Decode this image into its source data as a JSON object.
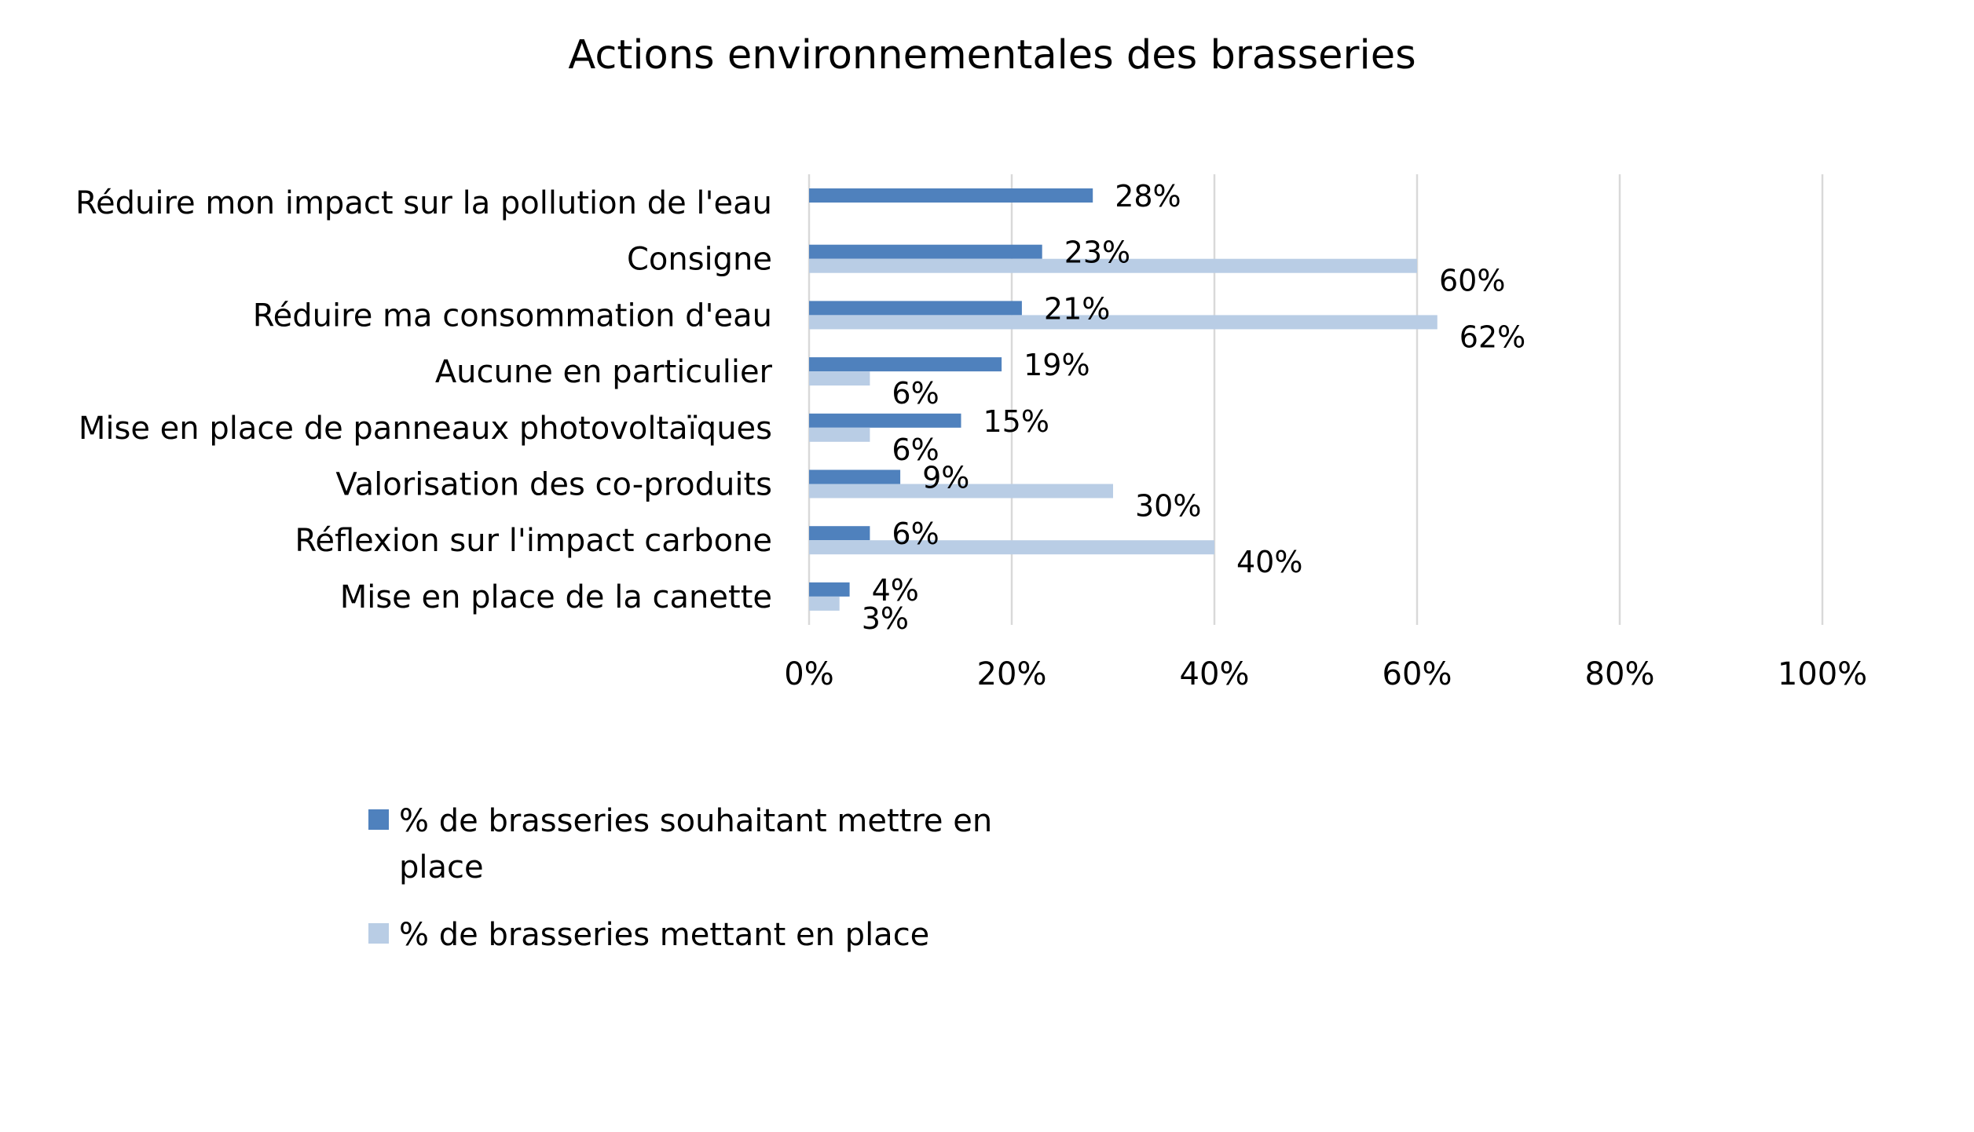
{
  "chart_data": {
    "type": "bar",
    "orientation": "horizontal",
    "title": "Actions environnementales des brasseries",
    "categories": [
      "Réduire mon impact sur la pollution de l'eau",
      "Consigne",
      "Réduire ma  consommation d'eau",
      "Aucune en particulier",
      "Mise en place de panneaux photovoltaïques",
      "Valorisation des co-produits",
      "Réflexion sur l'impact carbone",
      "Mise en place de la canette"
    ],
    "series": [
      {
        "name": "% de brasseries souhaitant mettre en place",
        "legend_lines": [
          "% de brasseries souhaitant mettre en",
          "place"
        ],
        "color": "#4f81bd",
        "values": [
          28,
          23,
          21,
          19,
          15,
          9,
          6,
          4
        ],
        "labels": [
          "28%",
          "23%",
          "21%",
          "19%",
          "15%",
          "9%",
          "6%",
          "4%"
        ]
      },
      {
        "name": "% de brasseries mettant en place",
        "legend_lines": [
          "% de brasseries mettant en place"
        ],
        "color": "#b9cde5",
        "values": [
          null,
          60,
          62,
          6,
          6,
          30,
          40,
          3
        ],
        "labels": [
          "",
          "60%",
          "62%",
          "6%",
          "6%",
          "30%",
          "40%",
          "3%"
        ]
      }
    ],
    "xlim": [
      0,
      100
    ],
    "xticks": [
      0,
      20,
      40,
      60,
      80,
      100
    ],
    "xtick_labels": [
      "0%",
      "20%",
      "40%",
      "60%",
      "80%",
      "100%"
    ],
    "grid": true,
    "gridline_color": "#d9d9d9",
    "legend": "bottom-left"
  }
}
